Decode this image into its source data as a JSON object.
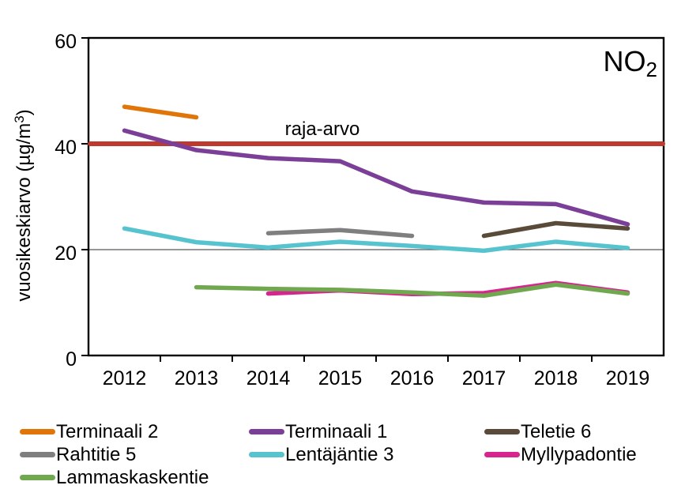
{
  "chart_data": {
    "type": "line",
    "annotation": {
      "pre": "NO",
      "sub": "2"
    },
    "ylabel": {
      "pre": "vuosikeskiarvo (µg/m",
      "sup": "3",
      "post": ")"
    },
    "categories": [
      "2012",
      "2013",
      "2014",
      "2015",
      "2016",
      "2017",
      "2018",
      "2019"
    ],
    "y_ticks": [
      0,
      20,
      40,
      60
    ],
    "ylim": [
      0,
      60
    ],
    "grid_y": [
      20
    ],
    "limit_line": {
      "label": "raja-arvo",
      "value": 40,
      "color": "#BF3A2E"
    },
    "series": [
      {
        "name": "Terminaali 2",
        "color": "#E0760A",
        "values": [
          47,
          45,
          null,
          null,
          null,
          null,
          null,
          null
        ]
      },
      {
        "name": "Terminaali 1",
        "color": "#7C3F98",
        "values": [
          42.5,
          38.8,
          37.3,
          36.7,
          31,
          28.9,
          28.6,
          24.8
        ]
      },
      {
        "name": "Teletie 6",
        "color": "#594A3A",
        "values": [
          null,
          null,
          null,
          null,
          null,
          22.6,
          25,
          24
        ]
      },
      {
        "name": "Rahtitie 5",
        "color": "#7F7F7F",
        "values": [
          null,
          null,
          23.1,
          23.7,
          22.6,
          null,
          null,
          null
        ]
      },
      {
        "name": "Lentäjäntie 3",
        "color": "#56C3CE",
        "values": [
          24,
          21.4,
          20.4,
          21.5,
          20.7,
          19.8,
          21.5,
          20.3
        ]
      },
      {
        "name": "Myllypadontie",
        "color": "#D6258E",
        "values": [
          null,
          null,
          11.7,
          12.3,
          11.6,
          11.8,
          13.7,
          11.9
        ]
      },
      {
        "name": "Lammaskaskentie",
        "color": "#6FA84F",
        "values": [
          null,
          12.9,
          12.6,
          12.4,
          11.9,
          11.3,
          13.4,
          11.7
        ]
      }
    ],
    "legend": {
      "position": "bottom",
      "order": [
        "Terminaali 2",
        "Terminaali 1",
        "Teletie 6",
        "Rahtitie 5",
        "Lentäjäntie 3",
        "Myllypadontie",
        "Lammaskaskentie"
      ]
    },
    "colors": {
      "axis": "#000000",
      "gridline": "#595959",
      "background": "#FFFFFF"
    }
  }
}
